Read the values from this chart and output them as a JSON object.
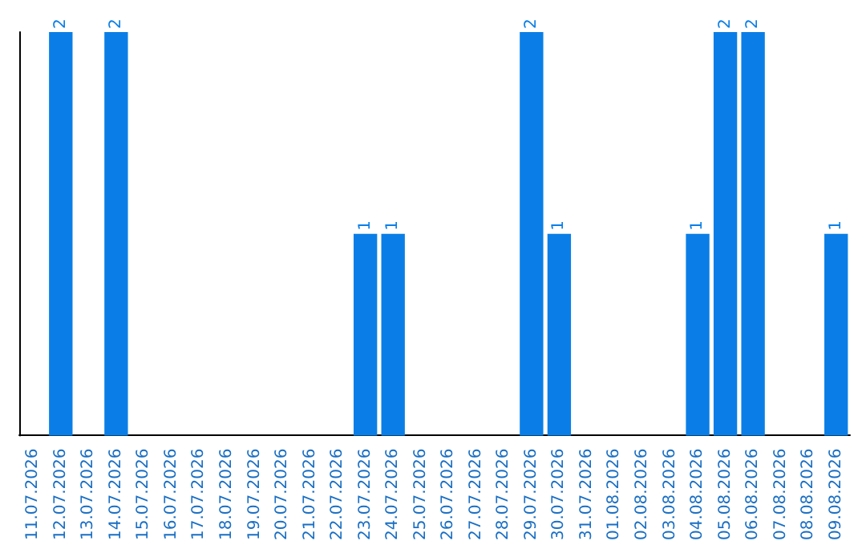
{
  "chart_data": {
    "type": "bar",
    "categories": [
      "11.07.2026",
      "12.07.2026",
      "13.07.2026",
      "14.07.2026",
      "15.07.2026",
      "16.07.2026",
      "17.07.2026",
      "18.07.2026",
      "19.07.2026",
      "20.07.2026",
      "21.07.2026",
      "22.07.2026",
      "23.07.2026",
      "24.07.2026",
      "25.07.2026",
      "26.07.2026",
      "27.07.2026",
      "28.07.2026",
      "29.07.2026",
      "30.07.2026",
      "31.07.2026",
      "01.08.2026",
      "02.08.2026",
      "03.08.2026",
      "04.08.2026",
      "05.08.2026",
      "06.08.2026",
      "07.08.2026",
      "08.08.2026",
      "09.08.2026"
    ],
    "values": [
      0,
      2,
      0,
      2,
      0,
      0,
      0,
      0,
      0,
      0,
      0,
      0,
      1,
      1,
      0,
      0,
      0,
      0,
      2,
      1,
      0,
      0,
      0,
      0,
      1,
      2,
      2,
      0,
      0,
      1
    ],
    "value_labels": [
      null,
      "2",
      null,
      "2",
      null,
      null,
      null,
      null,
      null,
      null,
      null,
      null,
      "1",
      "1",
      null,
      null,
      null,
      null,
      "2",
      "1",
      null,
      null,
      null,
      null,
      "1",
      "2",
      "2",
      null,
      null,
      "1"
    ],
    "color": "#0a7ee6",
    "grid": false,
    "tick_labels": "x"
  }
}
